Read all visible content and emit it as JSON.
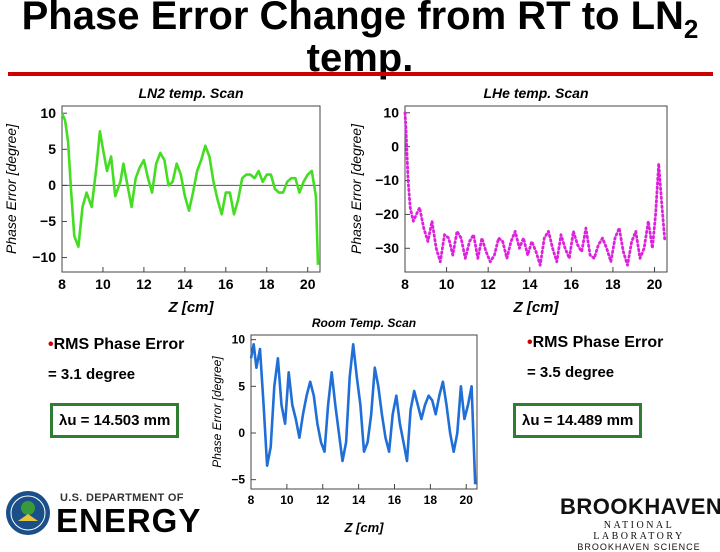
{
  "title": {
    "line1": "Phase Error Change from RT to LN",
    "sub": "2",
    "line2": "temp."
  },
  "notes": {
    "left_bullet": "RMS Phase Error",
    "left_value": "= 3.1 degree",
    "left_box": "λu = 14.503 mm",
    "right_bullet": "RMS Phase Error",
    "right_value": "= 3.5 degree",
    "right_box": "λu = 14.489 mm",
    "bullet_char": "•"
  },
  "logos": {
    "doe_dept": "U.S. DEPARTMENT OF",
    "doe_energy": "ENERGY",
    "bnl_name": "BROOKHAVEN",
    "bnl_lab": "NATIONAL LABORATORY",
    "bnl_sci": "BROOKHAVEN SCIENCE"
  },
  "colors": {
    "rule": "#cc0000",
    "ln2": "#44dd22",
    "lhe": "#dd22dd",
    "room": "#1f6fd6",
    "box_border": "#2e7d32"
  },
  "chart_data": [
    {
      "type": "line",
      "title": "LN2 temp. Scan",
      "xlabel": "Z [cm]",
      "ylabel": "Phase Error [degree]",
      "xlim": [
        8,
        20.6
      ],
      "ylim": [
        -12,
        11
      ],
      "xticks": [
        8,
        10,
        12,
        14,
        16,
        18,
        20
      ],
      "yticks": [
        -10,
        -5,
        0,
        5,
        10
      ],
      "zero_line": true,
      "series": [
        {
          "color": "#44dd22",
          "style": "solid",
          "x": [
            8.0,
            8.15,
            8.3,
            8.45,
            8.6,
            8.8,
            9.0,
            9.2,
            9.45,
            9.7,
            9.85,
            10.0,
            10.2,
            10.4,
            10.6,
            10.85,
            11.0,
            11.2,
            11.4,
            11.6,
            11.8,
            12.0,
            12.2,
            12.4,
            12.6,
            12.8,
            13.0,
            13.2,
            13.4,
            13.6,
            13.8,
            14.0,
            14.2,
            14.4,
            14.6,
            14.8,
            15.0,
            15.2,
            15.4,
            15.6,
            15.8,
            16.0,
            16.2,
            16.4,
            16.6,
            16.8,
            17.0,
            17.2,
            17.4,
            17.6,
            17.8,
            18.0,
            18.2,
            18.4,
            18.6,
            18.8,
            19.0,
            19.2,
            19.4,
            19.6,
            19.8,
            20.0,
            20.2,
            20.4,
            20.5
          ],
          "y": [
            10,
            9,
            6,
            -1,
            -7,
            -8.5,
            -3,
            -1,
            -3,
            3,
            7.5,
            5,
            2,
            4,
            -1.5,
            0.5,
            3,
            0,
            -3,
            1,
            2.5,
            3.5,
            1,
            -1,
            3,
            4.5,
            3.5,
            0,
            0.5,
            3,
            1.5,
            -1.5,
            -3.5,
            -1,
            2,
            3.5,
            5.5,
            4,
            0.5,
            -2,
            -4,
            -1,
            -1,
            -4,
            -2,
            1,
            1.5,
            1.5,
            1,
            2,
            0.5,
            1.5,
            1.5,
            -0.5,
            -1,
            -1,
            0.5,
            1,
            1,
            -1,
            0.5,
            1.5,
            2,
            -1.5,
            -11
          ]
        }
      ]
    },
    {
      "type": "line",
      "title": "LHe temp. Scan",
      "xlabel": "Z [cm]",
      "ylabel": "Phase Error [degree]",
      "xlim": [
        8,
        20.6
      ],
      "ylim": [
        -37,
        12
      ],
      "xticks": [
        8,
        10,
        12,
        14,
        16,
        18,
        20
      ],
      "yticks": [
        -30,
        -20,
        -10,
        0,
        10
      ],
      "zero_line": false,
      "series": [
        {
          "color": "#dd22dd",
          "style": "dotted",
          "x": [
            8.0,
            8.05,
            8.15,
            8.25,
            8.4,
            8.55,
            8.7,
            8.9,
            9.1,
            9.3,
            9.5,
            9.7,
            9.9,
            10.1,
            10.3,
            10.5,
            10.7,
            10.9,
            11.1,
            11.3,
            11.5,
            11.7,
            11.9,
            12.1,
            12.3,
            12.5,
            12.7,
            12.9,
            13.1,
            13.3,
            13.5,
            13.7,
            13.9,
            14.1,
            14.3,
            14.5,
            14.7,
            14.9,
            15.1,
            15.3,
            15.5,
            15.7,
            15.9,
            16.1,
            16.3,
            16.5,
            16.7,
            16.9,
            17.1,
            17.3,
            17.5,
            17.7,
            17.9,
            18.1,
            18.3,
            18.5,
            18.7,
            18.9,
            19.1,
            19.3,
            19.5,
            19.7,
            19.9,
            20.05,
            20.2,
            20.35,
            20.5
          ],
          "y": [
            10,
            5,
            -10,
            -18,
            -22,
            -20,
            -18,
            -24,
            -28,
            -22,
            -30,
            -34,
            -26,
            -27,
            -32,
            -25,
            -27,
            -33,
            -28,
            -26,
            -33,
            -27,
            -31,
            -34,
            -32,
            -27,
            -28,
            -33,
            -28,
            -25,
            -30,
            -27,
            -32,
            -28,
            -31,
            -35,
            -27,
            -25,
            -30,
            -34,
            -26,
            -30,
            -33,
            -25,
            -29,
            -31,
            -24,
            -32,
            -33,
            -29,
            -27,
            -30,
            -34,
            -27,
            -24,
            -31,
            -35,
            -28,
            -25,
            -33,
            -30,
            -22,
            -30,
            -20,
            -5,
            -17,
            -28
          ]
        }
      ]
    },
    {
      "type": "line",
      "title": "Room Temp. Scan",
      "xlabel": "Z [cm]",
      "ylabel": "Phase Error [degree]",
      "xlim": [
        8,
        20.6
      ],
      "ylim": [
        -6,
        10.5
      ],
      "xticks": [
        8,
        10,
        12,
        14,
        16,
        18,
        20
      ],
      "yticks": [
        -5,
        0,
        5,
        10
      ],
      "zero_line": false,
      "series": [
        {
          "color": "#1f6fd6",
          "style": "solid",
          "x": [
            8.0,
            8.15,
            8.3,
            8.5,
            8.7,
            8.9,
            9.1,
            9.3,
            9.5,
            9.7,
            9.9,
            10.1,
            10.3,
            10.5,
            10.7,
            10.9,
            11.1,
            11.3,
            11.5,
            11.7,
            11.9,
            12.1,
            12.3,
            12.5,
            12.7,
            12.9,
            13.1,
            13.3,
            13.5,
            13.7,
            13.9,
            14.1,
            14.3,
            14.5,
            14.7,
            14.9,
            15.1,
            15.3,
            15.5,
            15.7,
            15.9,
            16.1,
            16.3,
            16.5,
            16.7,
            16.9,
            17.1,
            17.3,
            17.5,
            17.7,
            17.9,
            18.1,
            18.3,
            18.5,
            18.7,
            18.9,
            19.1,
            19.3,
            19.5,
            19.7,
            19.9,
            20.1,
            20.3,
            20.5
          ],
          "y": [
            8,
            9.5,
            7,
            9,
            3,
            -3.5,
            -1.5,
            5,
            8,
            3,
            1,
            6.5,
            3,
            1.5,
            -0.5,
            2,
            4,
            5.5,
            4,
            1,
            -1,
            -2,
            3,
            6.5,
            3,
            0,
            -3,
            -1,
            6,
            9.5,
            6,
            3,
            -2,
            -1,
            2,
            7,
            5,
            2,
            -0.5,
            -2,
            2,
            4,
            1,
            -1,
            -3,
            2.5,
            4.5,
            3,
            1.5,
            3,
            4,
            3.5,
            2,
            4,
            5.5,
            3,
            0,
            -2,
            0,
            5,
            1.5,
            3,
            5,
            -5.5
          ]
        }
      ]
    }
  ]
}
